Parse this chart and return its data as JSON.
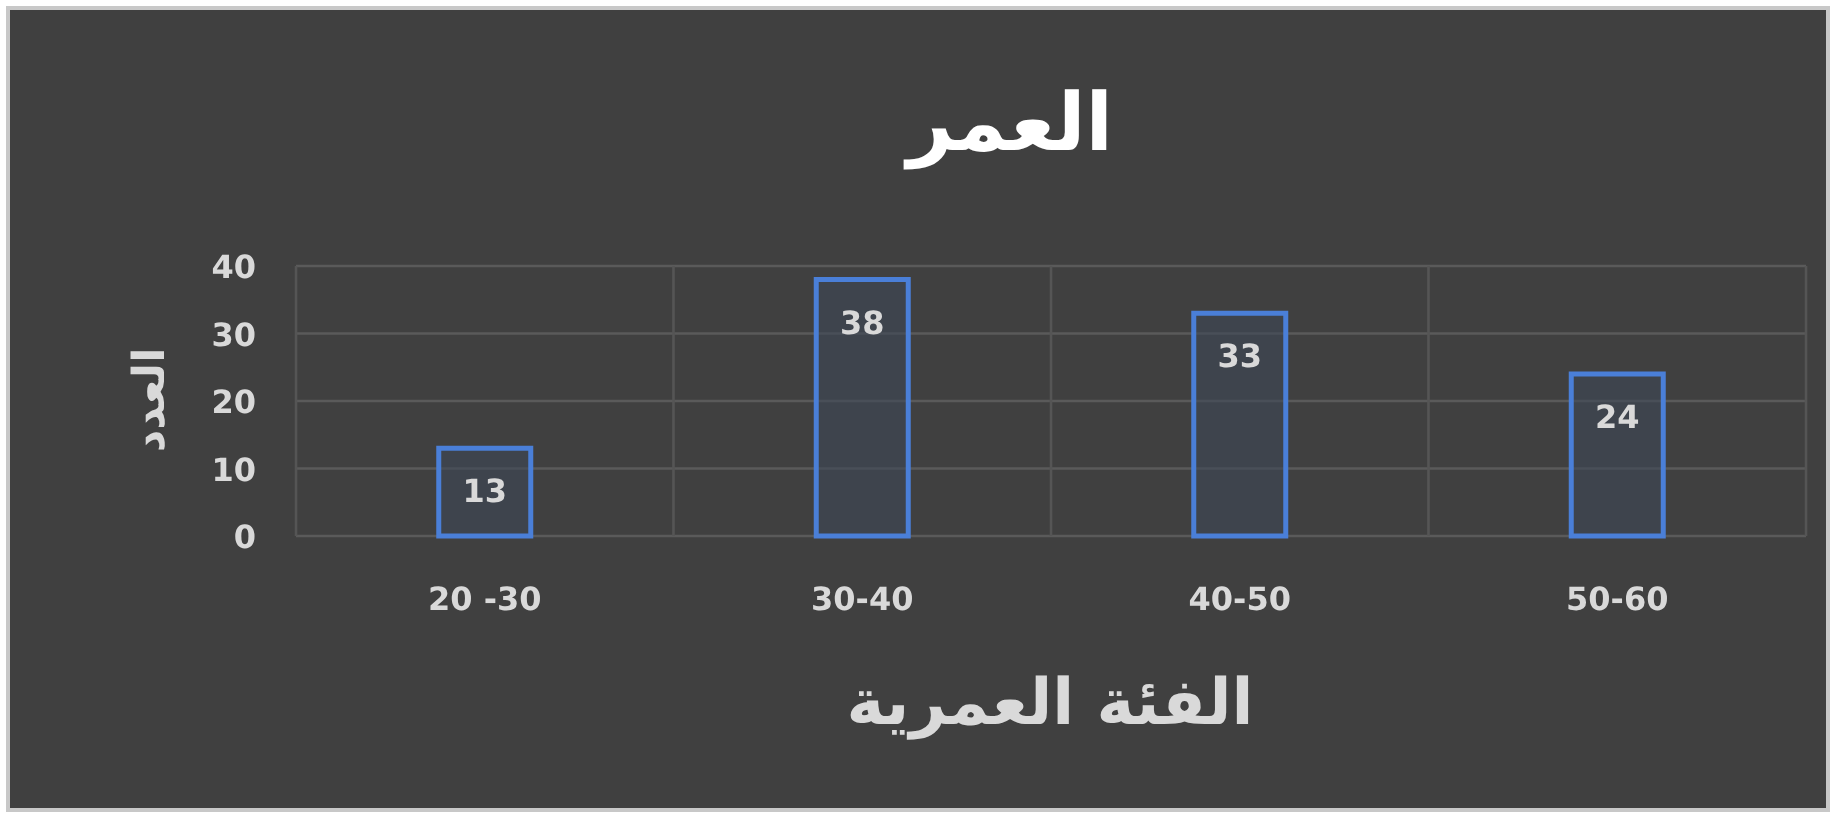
{
  "chart_data": {
    "type": "bar",
    "title": "العمر",
    "xlabel": "الفئة العمرية",
    "ylabel": "العدد",
    "categories": [
      "20 -30",
      "30-40",
      "40-50",
      "50-60"
    ],
    "values": [
      13,
      38,
      33,
      24
    ],
    "color": "#4a7fd8",
    "ylim": [
      0,
      40
    ],
    "yticks": [
      0,
      10,
      20,
      30,
      40
    ],
    "grid": true,
    "data_labels": true
  }
}
